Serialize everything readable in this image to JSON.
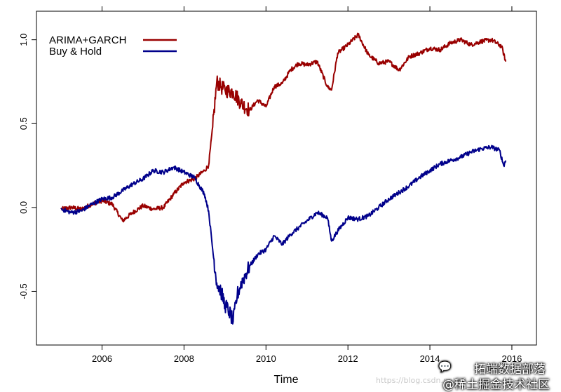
{
  "chart_data": {
    "type": "line",
    "title": "",
    "xlabel": "Time",
    "ylabel": "",
    "xlim": [
      2004.4,
      2016.6
    ],
    "ylim": [
      -0.82,
      1.17
    ],
    "x_ticks": [
      2006,
      2008,
      2010,
      2012,
      2014,
      2016
    ],
    "x_tick_labels": [
      "2006",
      "2008",
      "2010",
      "2012",
      "2014",
      "2016"
    ],
    "y_ticks": [
      -0.5,
      0.0,
      0.5,
      1.0
    ],
    "y_tick_labels": [
      "-0.5",
      "0.0",
      "0.5",
      "1.0"
    ],
    "grid": false,
    "legend_position": "top-left",
    "series": [
      {
        "name": "ARIMA+GARCH",
        "color": "#990000",
        "x": [
          2005.0,
          2005.25,
          2005.5,
          2005.75,
          2006.0,
          2006.25,
          2006.5,
          2006.75,
          2007.0,
          2007.25,
          2007.5,
          2007.75,
          2008.0,
          2008.25,
          2008.5,
          2008.6,
          2008.7,
          2008.8,
          2008.9,
          2009.0,
          2009.2,
          2009.4,
          2009.6,
          2009.8,
          2010.0,
          2010.2,
          2010.4,
          2010.6,
          2010.8,
          2011.0,
          2011.25,
          2011.5,
          2011.6,
          2011.75,
          2012.0,
          2012.25,
          2012.5,
          2012.75,
          2013.0,
          2013.25,
          2013.5,
          2013.75,
          2014.0,
          2014.25,
          2014.5,
          2014.75,
          2015.0,
          2015.25,
          2015.5,
          2015.75,
          2015.85
        ],
        "values": [
          -0.01,
          0.0,
          -0.01,
          0.02,
          0.04,
          0.02,
          -0.08,
          -0.03,
          0.01,
          -0.01,
          0.0,
          0.08,
          0.15,
          0.17,
          0.22,
          0.25,
          0.48,
          0.75,
          0.72,
          0.7,
          0.69,
          0.62,
          0.58,
          0.64,
          0.6,
          0.72,
          0.74,
          0.82,
          0.86,
          0.85,
          0.87,
          0.72,
          0.7,
          0.92,
          0.97,
          1.03,
          0.91,
          0.86,
          0.87,
          0.82,
          0.9,
          0.92,
          0.95,
          0.94,
          0.98,
          1.0,
          0.97,
          0.99,
          1.0,
          0.96,
          0.87
        ]
      },
      {
        "name": "Buy & Hold",
        "color": "#00008b",
        "x": [
          2005.0,
          2005.25,
          2005.5,
          2005.75,
          2006.0,
          2006.25,
          2006.5,
          2006.75,
          2007.0,
          2007.25,
          2007.5,
          2007.75,
          2008.0,
          2008.25,
          2008.5,
          2008.6,
          2008.7,
          2008.8,
          2008.9,
          2009.0,
          2009.1,
          2009.2,
          2009.3,
          2009.4,
          2009.6,
          2009.8,
          2010.0,
          2010.2,
          2010.4,
          2010.6,
          2010.8,
          2011.0,
          2011.25,
          2011.5,
          2011.6,
          2011.75,
          2012.0,
          2012.25,
          2012.5,
          2012.75,
          2013.0,
          2013.25,
          2013.5,
          2013.75,
          2014.0,
          2014.25,
          2014.5,
          2014.75,
          2015.0,
          2015.25,
          2015.5,
          2015.7,
          2015.8,
          2015.85
        ],
        "values": [
          -0.01,
          -0.03,
          -0.02,
          0.02,
          0.05,
          0.06,
          0.1,
          0.14,
          0.17,
          0.22,
          0.21,
          0.24,
          0.21,
          0.18,
          0.08,
          -0.02,
          -0.25,
          -0.45,
          -0.5,
          -0.58,
          -0.62,
          -0.68,
          -0.52,
          -0.45,
          -0.35,
          -0.28,
          -0.25,
          -0.17,
          -0.22,
          -0.16,
          -0.12,
          -0.08,
          -0.03,
          -0.06,
          -0.2,
          -0.14,
          -0.06,
          -0.07,
          -0.05,
          0.0,
          0.05,
          0.09,
          0.13,
          0.18,
          0.22,
          0.26,
          0.28,
          0.3,
          0.33,
          0.35,
          0.36,
          0.34,
          0.25,
          0.28
        ]
      }
    ]
  },
  "watermark": {
    "icon": "wechat-icon",
    "main": "拓端数据部落",
    "sub": "@稀土掘金技术社区",
    "faint": "https://blog.csdn.net"
  }
}
